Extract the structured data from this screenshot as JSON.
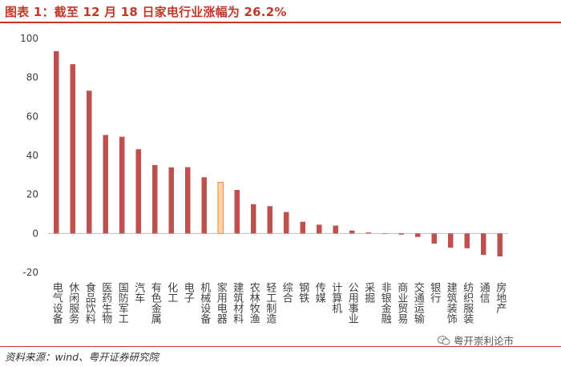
{
  "title": "图表 1：截至 12 月 18 日家电行业涨幅为 26.2%",
  "source": "资料来源：wind、粤开证券研究院",
  "watermark": "粤开崇利论市",
  "colors": {
    "bar": "#c0504d",
    "highlight_fill": "#fbd5b5",
    "highlight_stroke": "#f79646",
    "axis_text": "#404040",
    "title": "#c0392b"
  },
  "chart_data": {
    "type": "bar",
    "title": "",
    "xlabel": "",
    "ylabel": "",
    "ylim": [
      -20,
      100
    ],
    "yticks": [
      -20,
      0,
      20,
      40,
      60,
      80,
      100
    ],
    "grid": false,
    "categories": [
      "电气设备",
      "休闲服务",
      "食品饮料",
      "医药生物",
      "国防军工",
      "汽车",
      "有色金属",
      "化工",
      "电子",
      "机械设备",
      "家用电器",
      "建筑材料",
      "农林牧渔",
      "轻工制造",
      "综合",
      "钢铁",
      "传媒",
      "计算机",
      "公用事业",
      "采掘",
      "非银金融",
      "商业贸易",
      "交通运输",
      "银行",
      "建筑装饰",
      "纺织服装",
      "通信",
      "房地产"
    ],
    "values": [
      93.5,
      86.8,
      73.2,
      50.5,
      49.6,
      43.2,
      35.1,
      33.9,
      34.0,
      28.8,
      26.2,
      22.3,
      15.0,
      14.0,
      11.0,
      6.0,
      4.5,
      4.0,
      1.5,
      0.5,
      0.1,
      -0.6,
      -1.8,
      -5.2,
      -7.3,
      -7.6,
      -11.0,
      -11.8
    ],
    "highlight": "家用电器"
  }
}
